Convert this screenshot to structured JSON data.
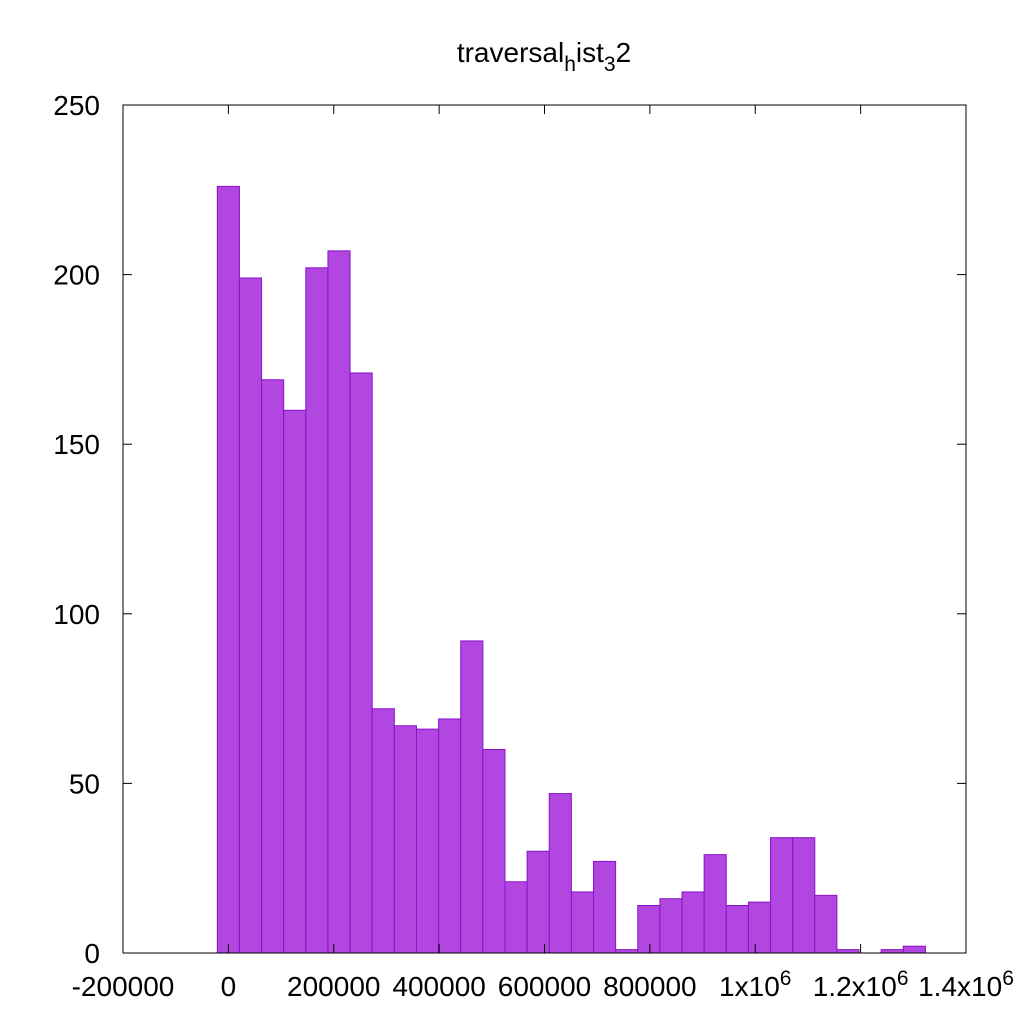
{
  "chart_data": {
    "type": "bar",
    "title": {
      "base": "traversal",
      "sub1": "h",
      "mid": "ist",
      "sub2": "3",
      "tail": "2"
    },
    "xlim": [
      -200000,
      1400000
    ],
    "ylim": [
      0,
      250
    ],
    "bin_width": 42000,
    "bins_start": -21000,
    "values": [
      226,
      199,
      169,
      160,
      202,
      207,
      171,
      72,
      67,
      66,
      69,
      92,
      60,
      21,
      30,
      47,
      18,
      27,
      1,
      14,
      16,
      18,
      29,
      14,
      15,
      34,
      34,
      17,
      1,
      0,
      1,
      2
    ],
    "y_ticks": [
      {
        "value": 0,
        "label": "0"
      },
      {
        "value": 50,
        "label": "50"
      },
      {
        "value": 100,
        "label": "100"
      },
      {
        "value": 150,
        "label": "150"
      },
      {
        "value": 200,
        "label": "200"
      },
      {
        "value": 250,
        "label": "250"
      }
    ],
    "x_ticks": [
      {
        "value": -200000,
        "label": "-200000",
        "exp": ""
      },
      {
        "value": 0,
        "label": "0",
        "exp": ""
      },
      {
        "value": 200000,
        "label": "200000",
        "exp": ""
      },
      {
        "value": 400000,
        "label": "400000",
        "exp": ""
      },
      {
        "value": 600000,
        "label": "600000",
        "exp": ""
      },
      {
        "value": 800000,
        "label": "800000",
        "exp": ""
      },
      {
        "value": 1000000,
        "label": "1x10",
        "exp": "6"
      },
      {
        "value": 1200000,
        "label": "1.2x10",
        "exp": "6"
      },
      {
        "value": 1400000,
        "label": "1.4x10",
        "exp": "6"
      }
    ],
    "bar_color": "#b147e0",
    "bar_edge_color": "#8a12c9",
    "grid": false,
    "legend": "none"
  }
}
